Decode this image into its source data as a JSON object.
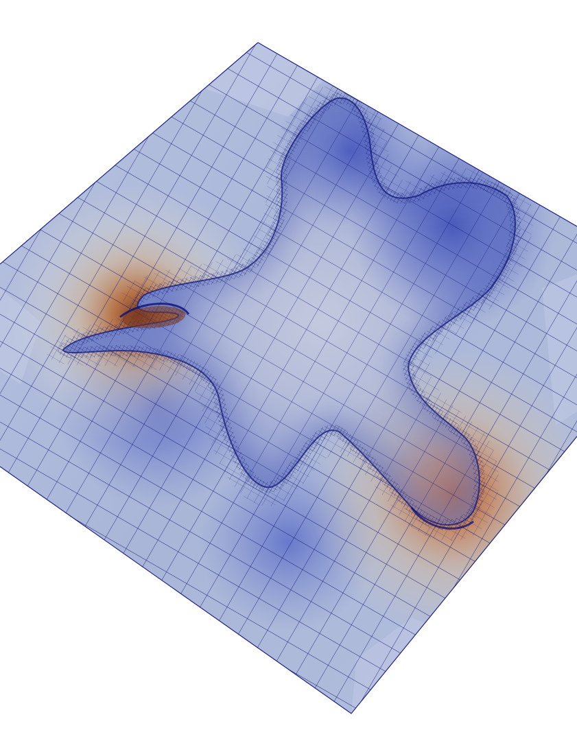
{
  "scene": {
    "background": "#ffffff",
    "surface_base_color": "#a9b6d8",
    "surface_dark_color": "#4a5fc0",
    "surface_warm_color": "#c86a3a",
    "surface_cream_color": "#ddd6c4",
    "wire_color": "#0b0f72",
    "visible_text": []
  }
}
